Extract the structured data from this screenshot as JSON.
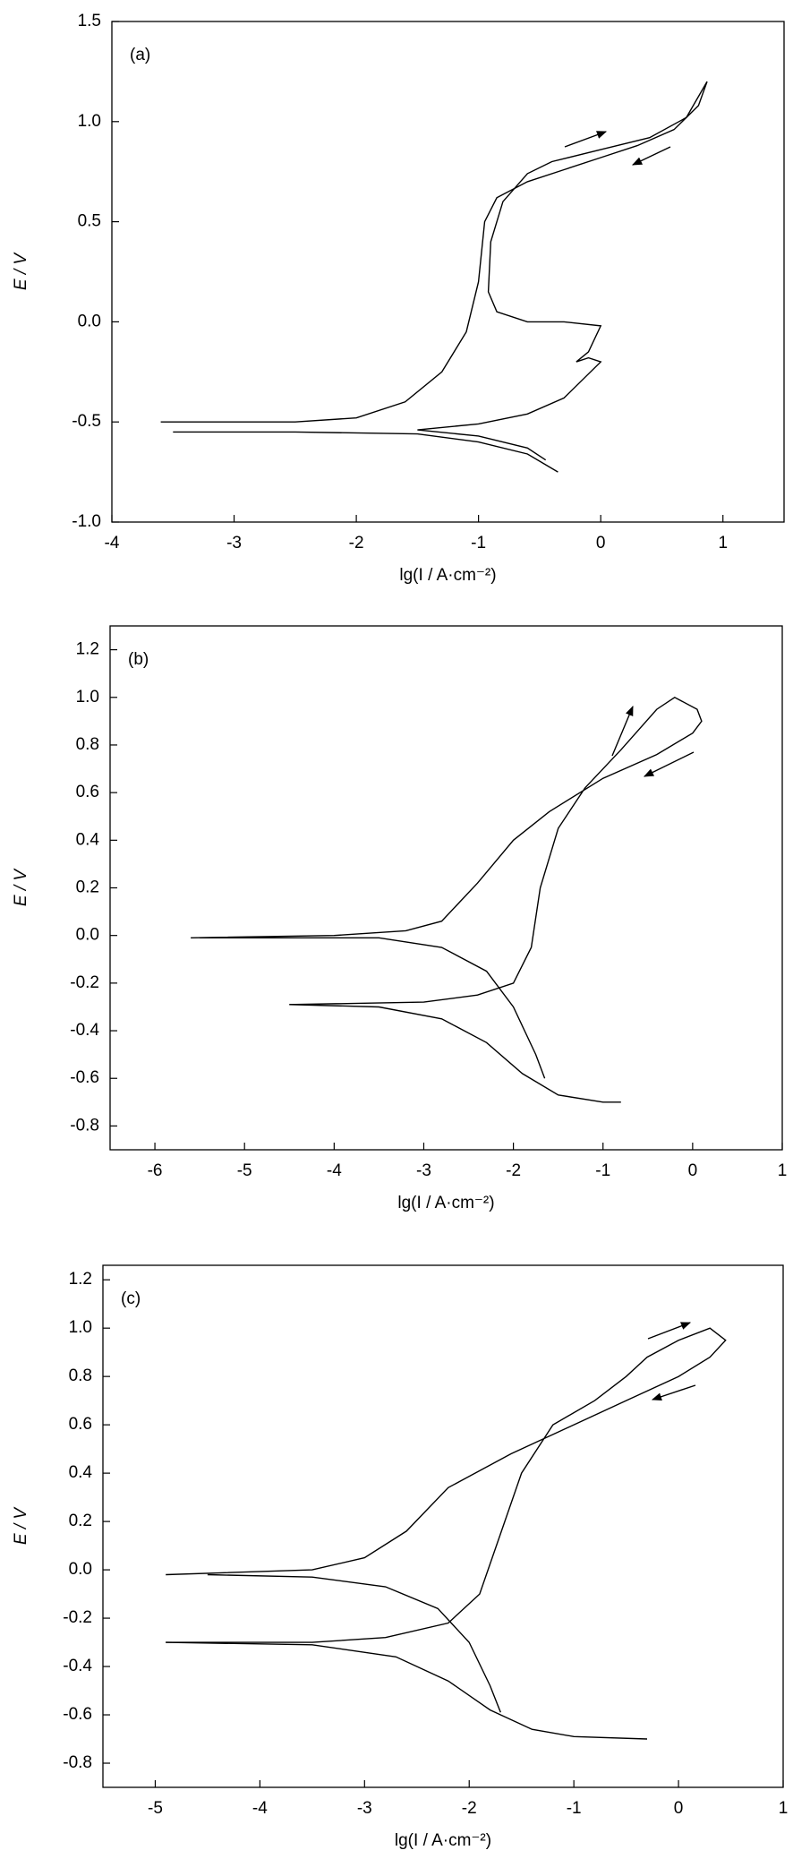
{
  "chart_data": [
    {
      "type": "line",
      "annotation": "(a)",
      "x_label": "lg(I / A·cm⁻²)",
      "y_label": "E / V",
      "xlim": [
        -4,
        1.5
      ],
      "xticks": [
        -4,
        -3,
        -2,
        -1,
        0,
        1
      ],
      "ylim": [
        -1,
        1.5
      ],
      "yticks": [
        {
          "value": -1,
          "label": "-1.0"
        },
        -0.5,
        {
          "value": 0,
          "label": "0.0"
        },
        0.5,
        {
          "value": 1,
          "label": "1.0"
        },
        1.5
      ],
      "series": [
        {
          "color": "#000000",
          "x": [
            -3.6,
            -2.5,
            -2.0,
            -1.6,
            -1.3,
            -1.1,
            -1.0,
            -0.95,
            -0.85,
            -0.6,
            -0.3,
            0,
            0.3,
            0.6,
            0.8,
            0.87
          ],
          "values": [
            -0.5,
            -0.5,
            -0.48,
            -0.4,
            -0.25,
            -0.05,
            0.2,
            0.5,
            0.62,
            0.7,
            0.76,
            0.82,
            0.88,
            0.96,
            1.08,
            1.2
          ]
        },
        {
          "color": "#000000",
          "x": [
            0.87,
            0.7,
            0.4,
            0,
            -0.4,
            -0.6,
            -0.8,
            -0.9,
            -0.92,
            -0.85,
            -0.6,
            -0.3,
            0,
            -0.1,
            -0.2,
            -0.1,
            0,
            -0.3,
            -0.6,
            -1.0,
            -1.5,
            -1.0,
            -0.6,
            -0.45
          ],
          "values": [
            1.2,
            1.02,
            0.92,
            0.86,
            0.8,
            0.74,
            0.6,
            0.4,
            0.15,
            0.05,
            0.0,
            0.0,
            -0.02,
            -0.15,
            -0.2,
            -0.18,
            -0.2,
            -0.38,
            -0.46,
            -0.51,
            -0.54,
            -0.57,
            -0.63,
            -0.69
          ]
        },
        {
          "color": "#000000",
          "x": [
            -3.5,
            -2.5,
            -1.5,
            -1.0,
            -0.6,
            -0.35
          ],
          "values": [
            -0.55,
            -0.55,
            -0.56,
            -0.6,
            -0.66,
            -0.75
          ]
        }
      ]
    },
    {
      "type": "line",
      "annotation": "(b)",
      "x_label": "lg(I / A·cm⁻²)",
      "y_label": "E / V",
      "xlim": [
        -6.5,
        1
      ],
      "xticks": [
        -6,
        -5,
        -4,
        -3,
        -2,
        -1,
        0,
        1
      ],
      "ylim": [
        -0.9,
        1.3
      ],
      "yticks": [
        -0.8,
        -0.6,
        -0.4,
        -0.2,
        {
          "value": 0,
          "label": "0.0"
        },
        0.2,
        0.4,
        0.6,
        0.8,
        {
          "value": 1,
          "label": "1.0"
        },
        1.2
      ],
      "series": [
        {
          "color": "#000000",
          "x": [
            -4.5,
            -3,
            -2.4,
            -2.0,
            -1.8,
            -1.7,
            -1.5,
            -1.2,
            -0.8,
            -0.4,
            -0.2,
            0.05,
            0.1,
            0,
            -0.4,
            -1.0,
            -1.6,
            -2.0,
            -2.4,
            -2.8,
            -3.2,
            -4,
            -5.6
          ],
          "values": [
            -0.29,
            -0.28,
            -0.25,
            -0.2,
            -0.05,
            0.2,
            0.45,
            0.62,
            0.78,
            0.95,
            1.0,
            0.95,
            0.9,
            0.85,
            0.76,
            0.66,
            0.52,
            0.4,
            0.22,
            0.06,
            0.02,
            0.0,
            -0.01
          ]
        },
        {
          "color": "#000000",
          "x": [
            -5.5,
            -4.0,
            -3.5,
            -2.8,
            -2.3,
            -2.0,
            -1.75,
            -1.65
          ],
          "values": [
            -0.01,
            -0.01,
            -0.01,
            -0.05,
            -0.15,
            -0.3,
            -0.5,
            -0.6
          ]
        },
        {
          "color": "#000000",
          "x": [
            -4.5,
            -3.5,
            -2.8,
            -2.3,
            -1.9,
            -1.5,
            -1.0,
            -0.8
          ],
          "values": [
            -0.29,
            -0.3,
            -0.35,
            -0.45,
            -0.58,
            -0.67,
            -0.7,
            -0.7
          ]
        }
      ]
    },
    {
      "type": "line",
      "annotation": "(c)",
      "x_label": "lg(I / A·cm⁻²)",
      "y_label": "E / V",
      "xlim": [
        -5.5,
        1
      ],
      "xticks": [
        -5,
        -4,
        -3,
        -2,
        -1,
        0,
        1
      ],
      "ylim": [
        -0.9,
        1.26
      ],
      "yticks": [
        -0.8,
        -0.6,
        -0.4,
        -0.2,
        {
          "value": 0,
          "label": "0.0"
        },
        0.2,
        0.4,
        0.6,
        0.8,
        {
          "value": 1,
          "label": "1.0"
        },
        1.2
      ],
      "series": [
        {
          "color": "#000000",
          "x": [
            -4.9,
            -3.5,
            -2.8,
            -2.2,
            -1.9,
            -1.7,
            -1.5,
            -1.2,
            -0.8,
            -0.5,
            -0.3,
            0,
            0.3,
            0.45,
            0.3,
            0,
            -0.5,
            -1.0,
            -1.6,
            -2.2,
            -2.6,
            -3.0,
            -3.5,
            -4.9
          ],
          "values": [
            -0.3,
            -0.3,
            -0.28,
            -0.22,
            -0.1,
            0.15,
            0.4,
            0.6,
            0.7,
            0.8,
            0.88,
            0.95,
            1.0,
            0.95,
            0.88,
            0.8,
            0.7,
            0.6,
            0.48,
            0.34,
            0.16,
            0.05,
            0.0,
            -0.02
          ]
        },
        {
          "color": "#000000",
          "x": [
            -4.5,
            -3.5,
            -2.8,
            -2.3,
            -2.0,
            -1.8,
            -1.7
          ],
          "values": [
            -0.02,
            -0.03,
            -0.07,
            -0.16,
            -0.3,
            -0.48,
            -0.59
          ]
        },
        {
          "color": "#000000",
          "x": [
            -4.9,
            -3.5,
            -2.7,
            -2.2,
            -1.8,
            -1.4,
            -1.0,
            -0.3
          ],
          "values": [
            -0.3,
            -0.31,
            -0.36,
            -0.46,
            -0.58,
            -0.66,
            -0.69,
            -0.7
          ]
        }
      ]
    }
  ]
}
